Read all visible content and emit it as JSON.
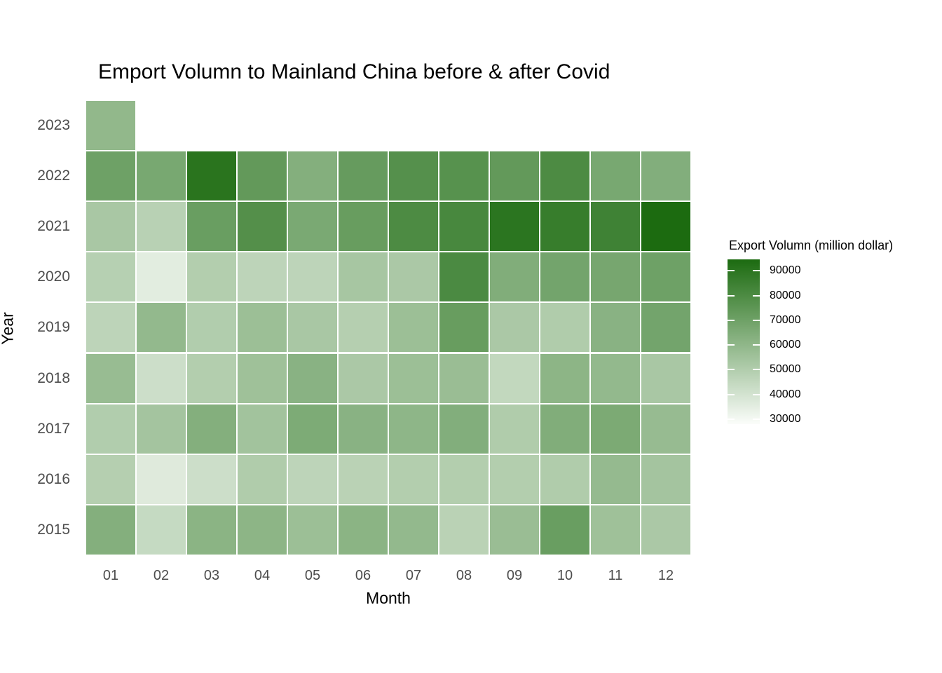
{
  "title": "Emport Volumn to Mainland China before & after Covid",
  "axes": {
    "x_title": "Month",
    "y_title": "Year",
    "x_ticks": [
      "01",
      "02",
      "03",
      "04",
      "05",
      "06",
      "07",
      "08",
      "09",
      "10",
      "11",
      "12"
    ],
    "y_ticks": [
      "2023",
      "2022",
      "2021",
      "2020",
      "2019",
      "2018",
      "2017",
      "2016",
      "2015"
    ],
    "tick_color": "#4d4d4d"
  },
  "legend": {
    "title": "Export Volumn (million dollar)",
    "tick_labels": [
      "90000",
      "80000",
      "70000",
      "60000",
      "50000",
      "40000",
      "30000"
    ],
    "tick_values": [
      90000,
      80000,
      70000,
      60000,
      50000,
      40000,
      30000
    ]
  },
  "color_scale": {
    "low_color": "#fbfdfa",
    "high_color": "#1c6b10",
    "domain_min": 28000,
    "domain_max": 94600
  },
  "chart_data": {
    "type": "heatmap",
    "title": "Emport Volumn to Mainland China before & after Covid",
    "xlabel": "Month",
    "ylabel": "Year",
    "unit": "million dollar",
    "legend_title": "Export Volumn (million dollar)",
    "legend_position": "right",
    "value_domain": [
      28000,
      94600
    ],
    "x": [
      "01",
      "02",
      "03",
      "04",
      "05",
      "06",
      "07",
      "08",
      "09",
      "10",
      "11",
      "12"
    ],
    "y": [
      "2023",
      "2022",
      "2021",
      "2020",
      "2019",
      "2018",
      "2017",
      "2016",
      "2015"
    ],
    "series": [
      {
        "name": "2023",
        "values": [
          59500,
          null,
          null,
          null,
          null,
          null,
          null,
          null,
          null,
          null,
          null,
          null
        ]
      },
      {
        "name": "2022",
        "values": [
          70000,
          67000,
          90500,
          73500,
          63500,
          72500,
          77500,
          77000,
          73500,
          80000,
          67000,
          64000
        ]
      },
      {
        "name": "2021",
        "values": [
          52500,
          48000,
          71500,
          78000,
          66500,
          72000,
          80000,
          81500,
          90000,
          86500,
          84000,
          94500
        ]
      },
      {
        "name": "2020",
        "values": [
          48500,
          35500,
          49500,
          46500,
          46500,
          53000,
          52000,
          80500,
          64500,
          68500,
          67500,
          70000
        ]
      },
      {
        "name": "2019",
        "values": [
          46500,
          59000,
          50000,
          56500,
          52500,
          49000,
          56500,
          72000,
          52000,
          50500,
          62000,
          68500
        ]
      },
      {
        "name": "2018",
        "values": [
          57500,
          42000,
          49500,
          55500,
          62000,
          52000,
          56500,
          57000,
          45000,
          61000,
          59000,
          52500
        ]
      },
      {
        "name": "2017",
        "values": [
          50000,
          54000,
          63500,
          54500,
          65500,
          62000,
          60500,
          64000,
          50500,
          64500,
          66000,
          58000
        ]
      },
      {
        "name": "2016",
        "values": [
          49000,
          36500,
          42000,
          50500,
          46500,
          47500,
          49500,
          49500,
          49500,
          50500,
          58500,
          54000
        ]
      },
      {
        "name": "2015",
        "values": [
          63500,
          44000,
          61500,
          61000,
          56500,
          61500,
          59000,
          47500,
          57000,
          71500,
          55500,
          52000
        ]
      }
    ]
  }
}
